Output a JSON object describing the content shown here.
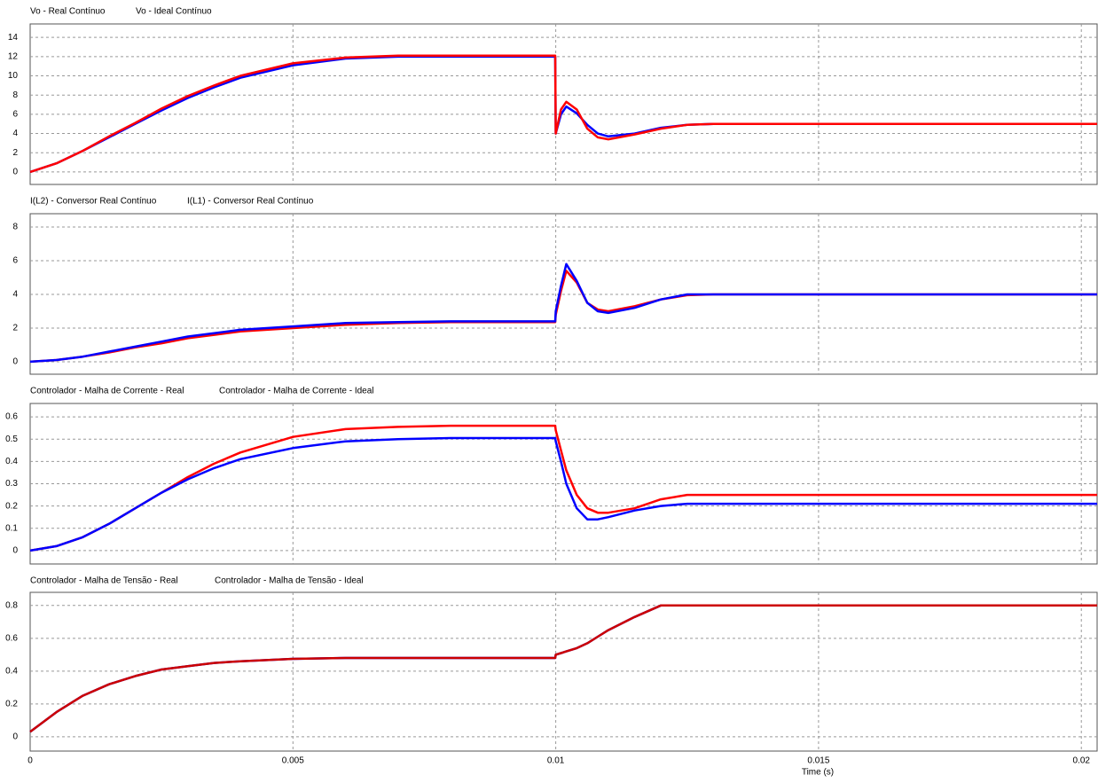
{
  "chart_data": [
    {
      "type": "line",
      "x": [
        0,
        0.0005,
        0.001,
        0.0015,
        0.002,
        0.0025,
        0.003,
        0.0035,
        0.004,
        0.005,
        0.006,
        0.007,
        0.008,
        0.009,
        0.00999,
        0.01,
        0.0101,
        0.0102,
        0.0104,
        0.0106,
        0.0108,
        0.011,
        0.0115,
        0.012,
        0.0125,
        0.013,
        0.015,
        0.0203
      ],
      "series": [
        {
          "name": "Vo - Real Contínuo",
          "color": "#0000ff",
          "values": [
            0,
            0.9,
            2.2,
            3.6,
            5.0,
            6.4,
            7.7,
            8.8,
            9.8,
            11.1,
            11.8,
            12.0,
            12.0,
            12.0,
            12.0,
            4.0,
            6.0,
            6.8,
            6.1,
            4.9,
            4.0,
            3.7,
            4.0,
            4.6,
            4.9,
            5.0,
            5.0,
            5.0
          ]
        },
        {
          "name": "Vo - Ideal Contínuo",
          "color": "#ff0000",
          "values": [
            0,
            0.9,
            2.2,
            3.7,
            5.1,
            6.6,
            7.9,
            9.0,
            10.0,
            11.3,
            11.9,
            12.1,
            12.1,
            12.1,
            12.1,
            4.0,
            6.5,
            7.3,
            6.5,
            4.5,
            3.6,
            3.4,
            3.9,
            4.5,
            4.9,
            5.0,
            5.0,
            5.0
          ]
        }
      ],
      "xlim": [
        0,
        0.0203
      ],
      "xticks": [
        0,
        0.005,
        0.01,
        0.015,
        0.02
      ],
      "ylim": [
        -1.3,
        15.4
      ],
      "yticks": [
        0,
        2,
        4,
        6,
        8,
        10,
        12,
        14
      ],
      "grid": true
    },
    {
      "type": "line",
      "x": [
        0,
        0.0005,
        0.001,
        0.0015,
        0.002,
        0.0025,
        0.003,
        0.0035,
        0.004,
        0.005,
        0.006,
        0.007,
        0.008,
        0.009,
        0.00999,
        0.01,
        0.0101,
        0.0102,
        0.0104,
        0.0106,
        0.0108,
        0.011,
        0.0115,
        0.012,
        0.0125,
        0.013,
        0.015,
        0.0203
      ],
      "series": [
        {
          "name": "I(L2) - Conversor Real Contínuo",
          "color": "#ff0000",
          "values": [
            0,
            0.1,
            0.3,
            0.55,
            0.85,
            1.1,
            1.4,
            1.6,
            1.8,
            2.0,
            2.2,
            2.3,
            2.35,
            2.35,
            2.35,
            2.8,
            4.2,
            5.4,
            4.7,
            3.5,
            3.1,
            3.0,
            3.3,
            3.7,
            3.95,
            4.0,
            4.0,
            4.0
          ]
        },
        {
          "name": "I(L1) - Conversor Real Contínuo",
          "color": "#0000ff",
          "values": [
            0,
            0.1,
            0.3,
            0.6,
            0.9,
            1.2,
            1.5,
            1.7,
            1.9,
            2.1,
            2.3,
            2.35,
            2.4,
            2.4,
            2.4,
            3.0,
            4.5,
            5.8,
            4.8,
            3.5,
            3.0,
            2.9,
            3.2,
            3.7,
            4.0,
            4.0,
            4.0,
            4.0
          ]
        }
      ],
      "xlim": [
        0,
        0.0203
      ],
      "xticks": [
        0,
        0.005,
        0.01,
        0.015,
        0.02
      ],
      "ylim": [
        -0.74,
        8.79
      ],
      "yticks": [
        0,
        2,
        4,
        6,
        8
      ],
      "grid": true
    },
    {
      "type": "line",
      "x": [
        0,
        0.0005,
        0.001,
        0.0015,
        0.002,
        0.0025,
        0.003,
        0.0035,
        0.004,
        0.005,
        0.006,
        0.007,
        0.008,
        0.009,
        0.00999,
        0.01,
        0.0101,
        0.0102,
        0.0104,
        0.0106,
        0.0108,
        0.011,
        0.0115,
        0.012,
        0.0125,
        0.013,
        0.015,
        0.0203
      ],
      "series": [
        {
          "name": "Controlador - Malha de Corrente - Real",
          "color": "#ff0000",
          "values": [
            0,
            0.02,
            0.06,
            0.12,
            0.19,
            0.26,
            0.33,
            0.39,
            0.44,
            0.51,
            0.545,
            0.555,
            0.56,
            0.56,
            0.56,
            0.54,
            0.45,
            0.36,
            0.25,
            0.19,
            0.17,
            0.17,
            0.19,
            0.23,
            0.25,
            0.25,
            0.25,
            0.25
          ]
        },
        {
          "name": "Controlador - Malha de Corrente - Ideal",
          "color": "#0000ff",
          "values": [
            0,
            0.02,
            0.06,
            0.12,
            0.19,
            0.26,
            0.32,
            0.37,
            0.41,
            0.46,
            0.49,
            0.5,
            0.505,
            0.505,
            0.505,
            0.49,
            0.4,
            0.3,
            0.19,
            0.14,
            0.14,
            0.15,
            0.18,
            0.2,
            0.21,
            0.21,
            0.21,
            0.21
          ]
        }
      ],
      "xlim": [
        0,
        0.0203
      ],
      "xticks": [
        0,
        0.005,
        0.01,
        0.015,
        0.02
      ],
      "ylim": [
        -0.06,
        0.66
      ],
      "yticks": [
        0,
        0.1,
        0.2,
        0.3,
        0.4,
        0.5,
        0.6
      ],
      "grid": true
    },
    {
      "type": "line",
      "x": [
        0,
        0.0005,
        0.001,
        0.0015,
        0.002,
        0.0025,
        0.003,
        0.0035,
        0.004,
        0.005,
        0.006,
        0.007,
        0.008,
        0.009,
        0.00999,
        0.01,
        0.0101,
        0.0102,
        0.0104,
        0.0106,
        0.0108,
        0.011,
        0.0115,
        0.012,
        0.0125,
        0.013,
        0.015,
        0.0203
      ],
      "series": [
        {
          "name": "Controlador - Malha de Tensão - Real",
          "color": "#0000ff",
          "values": [
            0.03,
            0.15,
            0.25,
            0.32,
            0.37,
            0.41,
            0.43,
            0.45,
            0.46,
            0.475,
            0.48,
            0.48,
            0.48,
            0.48,
            0.48,
            0.5,
            0.51,
            0.52,
            0.54,
            0.57,
            0.61,
            0.65,
            0.73,
            0.8,
            0.8,
            0.8,
            0.8,
            0.8
          ]
        },
        {
          "name": "Controlador - Malha de Tensão - Ideal",
          "color": "#cc0000",
          "values": [
            0.03,
            0.15,
            0.25,
            0.32,
            0.37,
            0.41,
            0.43,
            0.45,
            0.46,
            0.475,
            0.48,
            0.48,
            0.48,
            0.48,
            0.48,
            0.5,
            0.51,
            0.52,
            0.54,
            0.57,
            0.61,
            0.65,
            0.73,
            0.8,
            0.8,
            0.8,
            0.8,
            0.8
          ]
        }
      ],
      "xlim": [
        0,
        0.0203
      ],
      "xticks": [
        0,
        0.005,
        0.01,
        0.015,
        0.02
      ],
      "ylim": [
        -0.087,
        0.88
      ],
      "yticks": [
        0,
        0.2,
        0.4,
        0.6,
        0.8
      ],
      "grid": true,
      "xlabel": "Time (s)"
    }
  ]
}
